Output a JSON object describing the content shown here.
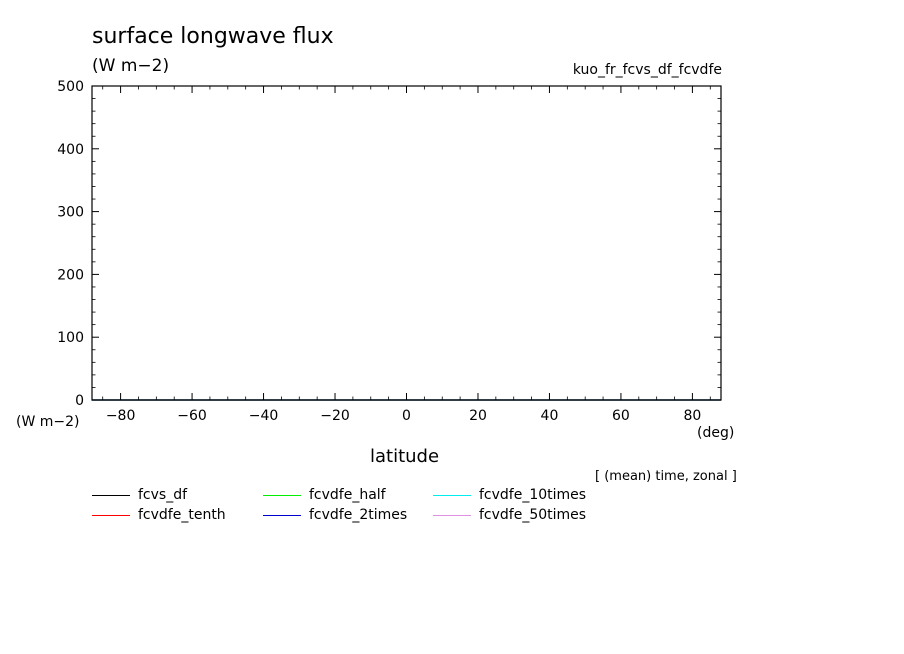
{
  "chart_data": {
    "type": "line",
    "title": "surface longwave flux",
    "units": "(W m−2)",
    "experiment": "kuo_fr_fcvs_df_fcvdfe",
    "xlabel": "latitude",
    "xunit": "(deg)",
    "yunit": "(W m−2)",
    "stat": "[ (mean) time, zonal ]",
    "xlim": [
      -88,
      88
    ],
    "ylim": [
      0,
      500
    ],
    "xticks": [
      -80,
      -60,
      -40,
      -20,
      0,
      20,
      40,
      60,
      80
    ],
    "yticks": [
      0,
      100,
      200,
      300,
      400,
      500
    ],
    "x": [
      -88,
      -80,
      -60,
      -40,
      -20,
      0,
      20,
      40,
      60,
      80,
      88
    ],
    "series": [
      {
        "name": "fcvs_df",
        "color": "#000000",
        "values": [
          0,
          0,
          0,
          0,
          0,
          0,
          0,
          0,
          0,
          0,
          0
        ]
      },
      {
        "name": "fcvdfe_tenth",
        "color": "#ff0000",
        "values": [
          0,
          0,
          0,
          0,
          0,
          0,
          0,
          0,
          0,
          0,
          0
        ]
      },
      {
        "name": "fcvdfe_half",
        "color": "#00ee00",
        "values": [
          0,
          0,
          0,
          0,
          0,
          0,
          0,
          0,
          0,
          0,
          0
        ]
      },
      {
        "name": "fcvdfe_2times",
        "color": "#0000cc",
        "values": [
          0,
          0,
          0,
          0,
          0,
          0,
          0,
          0,
          0,
          0,
          0
        ]
      },
      {
        "name": "fcvdfe_10times",
        "color": "#00eeee",
        "values": [
          0,
          0,
          0,
          0,
          0,
          0,
          0,
          0,
          0,
          0,
          0
        ]
      },
      {
        "name": "fcvdfe_50times",
        "color": "#e090e0",
        "values": [
          0,
          0,
          0,
          0,
          0,
          0,
          0,
          0,
          0,
          0,
          0
        ]
      }
    ],
    "grid": false,
    "legend_position": "bottom"
  }
}
